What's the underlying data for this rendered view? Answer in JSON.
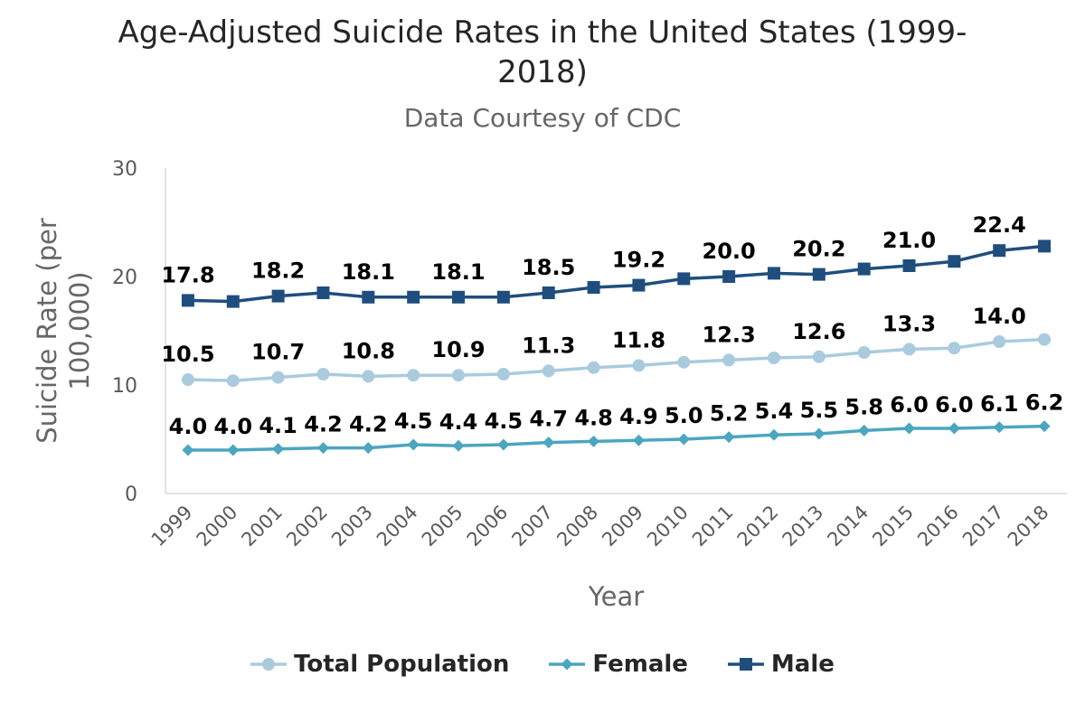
{
  "chart_data": {
    "type": "line",
    "title": "Age-Adjusted Suicide Rates in the United States (1999-2018)",
    "subtitle": "Data Courtesy of CDC",
    "xlabel": "Year",
    "ylabel": "Suicide Rate (per 100,000)",
    "ylim": [
      0,
      30
    ],
    "yticks": [
      "0",
      "10",
      "20",
      "30"
    ],
    "categories": [
      "1999",
      "2000",
      "2001",
      "2002",
      "2003",
      "2004",
      "2005",
      "2006",
      "2007",
      "2008",
      "2009",
      "2010",
      "2011",
      "2012",
      "2013",
      "2014",
      "2015",
      "2016",
      "2017",
      "2018"
    ],
    "grid": false,
    "legend_position": "bottom",
    "series": [
      {
        "name": "Total Population",
        "color": "#a9cbdd",
        "marker": "circle",
        "values": [
          10.5,
          10.4,
          10.7,
          11.0,
          10.8,
          10.9,
          10.9,
          11.0,
          11.3,
          11.6,
          11.8,
          12.1,
          12.3,
          12.5,
          12.6,
          13.0,
          13.3,
          13.4,
          14.0,
          14.2
        ],
        "labels": [
          "10.5",
          "",
          "10.7",
          "",
          "10.8",
          "",
          "10.9",
          "",
          "11.3",
          "",
          "11.8",
          "",
          "12.3",
          "",
          "12.6",
          "",
          "13.3",
          "",
          "14.0",
          ""
        ]
      },
      {
        "name": "Female",
        "color": "#4ba6c0",
        "marker": "diamond",
        "values": [
          4.0,
          4.0,
          4.1,
          4.2,
          4.2,
          4.5,
          4.4,
          4.5,
          4.7,
          4.8,
          4.9,
          5.0,
          5.2,
          5.4,
          5.5,
          5.8,
          6.0,
          6.0,
          6.1,
          6.2
        ],
        "labels": [
          "4.0",
          "4.0",
          "4.1",
          "4.2",
          "4.2",
          "4.5",
          "4.4",
          "4.5",
          "4.7",
          "4.8",
          "4.9",
          "5.0",
          "5.2",
          "5.4",
          "5.5",
          "5.8",
          "6.0",
          "6.0",
          "6.1",
          "6.2"
        ]
      },
      {
        "name": "Male",
        "color": "#1f4e7e",
        "marker": "square",
        "values": [
          17.8,
          17.7,
          18.2,
          18.5,
          18.1,
          18.1,
          18.1,
          18.1,
          18.5,
          19.0,
          19.2,
          19.8,
          20.0,
          20.3,
          20.2,
          20.7,
          21.0,
          21.4,
          22.4,
          22.8
        ],
        "labels": [
          "17.8",
          "",
          "18.2",
          "",
          "18.1",
          "",
          "18.1",
          "",
          "18.5",
          "",
          "19.2",
          "",
          "20.0",
          "",
          "20.2",
          "",
          "21.0",
          "",
          "22.4",
          ""
        ]
      }
    ]
  }
}
